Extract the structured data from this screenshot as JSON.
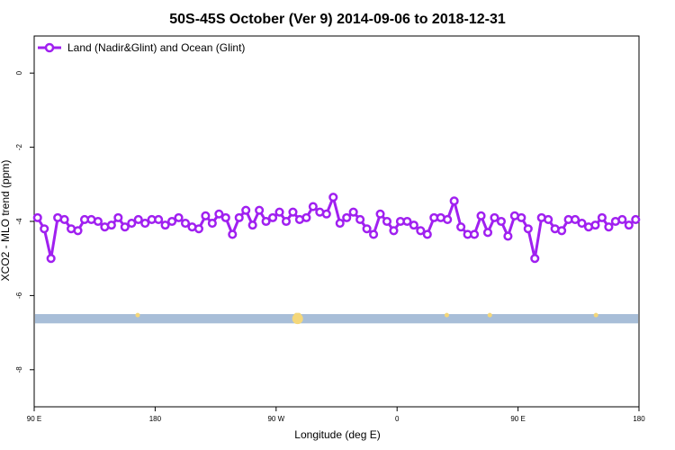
{
  "chart_data": {
    "type": "line",
    "title": "50S-45S October (Ver 9)   2014-09-06 to 2018-12-31",
    "xlabel": "Longitude (deg E)",
    "ylabel": "XCO2 - MLO trend (ppm)",
    "x_ticks": [
      90,
      180,
      270,
      360,
      450,
      540
    ],
    "x_tick_labels": [
      "90 E",
      "180",
      "90 W",
      "0",
      "90 E",
      "180"
    ],
    "xlim": [
      90,
      540
    ],
    "y_ticks": [
      0,
      -2,
      -4,
      -6,
      -8
    ],
    "y_tick_labels": [
      "0",
      "-2",
      "-4",
      "-6",
      "-8"
    ],
    "ylim": [
      -9.0,
      1.0
    ],
    "legend": {
      "position": "top-left",
      "entries": [
        "Land (Nadir&Glint) and Ocean (Glint)"
      ]
    },
    "grid": false,
    "series": [
      {
        "name": "Land (Nadir&Glint) and Ocean (Glint)",
        "color": "#a020f0",
        "x": [
          92.5,
          97.5,
          102.5,
          107.5,
          112.5,
          117.5,
          122.5,
          127.5,
          132.5,
          137.5,
          142.5,
          147.5,
          152.5,
          157.5,
          162.5,
          167.5,
          172.5,
          177.5,
          182.5,
          187.5,
          192.5,
          197.5,
          202.5,
          207.5,
          212.5,
          217.5,
          222.5,
          227.5,
          232.5,
          237.5,
          242.5,
          247.5,
          252.5,
          257.5,
          262.5,
          267.5,
          272.5,
          277.5,
          282.5,
          287.5,
          292.5,
          297.5,
          302.5,
          307.5,
          312.5,
          317.5,
          322.5,
          327.5,
          332.5,
          337.5,
          342.5,
          347.5,
          352.5,
          357.5,
          362.5,
          367.5,
          372.5,
          377.5,
          382.5,
          387.5,
          392.5,
          397.5,
          402.5,
          407.5,
          412.5,
          417.5,
          422.5,
          427.5,
          432.5,
          437.5,
          442.5,
          447.5,
          452.5,
          457.5,
          462.5,
          467.5,
          472.5,
          477.5,
          482.5,
          487.5,
          492.5,
          497.5,
          502.5,
          507.5,
          512.5,
          517.5,
          522.5,
          527.5,
          532.5,
          537.5
        ],
        "values": [
          -3.9,
          -4.2,
          -5.0,
          -3.9,
          -3.95,
          -4.2,
          -4.25,
          -3.95,
          -3.95,
          -4.0,
          -4.15,
          -4.1,
          -3.9,
          -4.15,
          -4.05,
          -3.95,
          -4.05,
          -3.95,
          -3.95,
          -4.1,
          -4.0,
          -3.9,
          -4.05,
          -4.15,
          -4.2,
          -3.85,
          -4.05,
          -3.8,
          -3.9,
          -4.35,
          -3.9,
          -3.7,
          -4.1,
          -3.7,
          -4.0,
          -3.9,
          -3.75,
          -4.0,
          -3.75,
          -3.95,
          -3.9,
          -3.6,
          -3.75,
          -3.8,
          -3.35,
          -4.05,
          -3.9,
          -3.75,
          -3.95,
          -4.2,
          -4.35,
          -3.8,
          -4.0,
          -4.25,
          -4.0,
          -4.0,
          -4.1,
          -4.25,
          -4.35,
          -3.9,
          -3.9,
          -3.95,
          -3.45,
          -4.15,
          -4.35,
          -4.35,
          -3.85,
          -4.3,
          -3.9,
          -4.0,
          -4.4,
          -3.85,
          -3.9,
          -4.2,
          -5.0,
          -3.9,
          -3.95,
          -4.2,
          -4.25,
          -3.95,
          -3.95,
          -4.05,
          -4.15,
          -4.1,
          -3.9,
          -4.15,
          -4.0,
          -3.95,
          -4.1,
          -3.95
        ]
      }
    ],
    "coverage_band": {
      "y_range": [
        -6.75,
        -6.5
      ],
      "color": "#a8bed8",
      "marker_color": "#f4d77a",
      "marker_x": [
        167,
        285,
        286,
        287,
        397,
        429,
        508
      ]
    }
  }
}
